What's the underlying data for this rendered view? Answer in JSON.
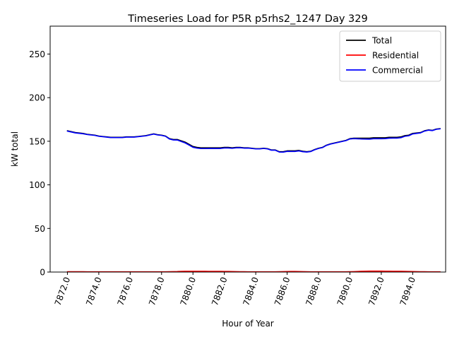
{
  "chart_data": {
    "type": "line",
    "title": "Timeseries Load for P5R p5rhs2_1247  Day 329",
    "xlabel": "Hour of Year",
    "ylabel": "kW total",
    "xlim": [
      7870.9,
      7896.1
    ],
    "ylim": [
      0,
      282
    ],
    "xticks": [
      7872,
      7874,
      7876,
      7878,
      7880,
      7882,
      7884,
      7886,
      7888,
      7890,
      7892,
      7894
    ],
    "xtick_labels": [
      "7872.0",
      "7874.0",
      "7876.0",
      "7878.0",
      "7880.0",
      "7882.0",
      "7884.0",
      "7886.0",
      "7888.0",
      "7890.0",
      "7892.0",
      "7894.0"
    ],
    "yticks": [
      0,
      50,
      100,
      150,
      200,
      250
    ],
    "ytick_labels": [
      "0",
      "50",
      "100",
      "150",
      "200",
      "250"
    ],
    "grid": false,
    "legend_position": "top-right",
    "x": [
      7872.0,
      7872.25,
      7872.5,
      7872.75,
      7873.0,
      7873.25,
      7873.5,
      7873.75,
      7874.0,
      7874.25,
      7874.5,
      7874.75,
      7875.0,
      7875.25,
      7875.5,
      7875.75,
      7876.0,
      7876.25,
      7876.5,
      7876.75,
      7877.0,
      7877.25,
      7877.5,
      7877.75,
      7878.0,
      7878.25,
      7878.5,
      7878.75,
      7879.0,
      7879.25,
      7879.5,
      7879.75,
      7880.0,
      7880.25,
      7880.5,
      7880.75,
      7881.0,
      7881.25,
      7881.5,
      7881.75,
      7882.0,
      7882.25,
      7882.5,
      7882.75,
      7883.0,
      7883.25,
      7883.5,
      7883.75,
      7884.0,
      7884.25,
      7884.5,
      7884.75,
      7885.0,
      7885.25,
      7885.5,
      7885.75,
      7886.0,
      7886.25,
      7886.5,
      7886.75,
      7887.0,
      7887.25,
      7887.5,
      7887.75,
      7888.0,
      7888.25,
      7888.5,
      7888.75,
      7889.0,
      7889.25,
      7889.5,
      7889.75,
      7890.0,
      7890.25,
      7890.5,
      7890.75,
      7891.0,
      7891.25,
      7891.5,
      7891.75,
      7892.0,
      7892.25,
      7892.5,
      7892.75,
      7893.0,
      7893.25,
      7893.5,
      7893.75,
      7894.0,
      7894.25,
      7894.5,
      7894.75,
      7895.0,
      7895.25,
      7895.5,
      7895.75
    ],
    "series": [
      {
        "name": "Total",
        "color": "#000000",
        "values": [
          162.0,
          161.0,
          160.0,
          159.5,
          159.0,
          158.0,
          157.5,
          157.0,
          156.0,
          155.5,
          155.0,
          154.5,
          154.5,
          154.5,
          154.5,
          155.0,
          155.0,
          155.0,
          155.5,
          156.0,
          156.5,
          157.5,
          158.5,
          157.5,
          157.0,
          156.0,
          153.0,
          152.0,
          152.0,
          150.5,
          149.0,
          146.5,
          144.0,
          143.0,
          142.5,
          142.5,
          142.5,
          142.5,
          142.5,
          142.5,
          143.0,
          143.0,
          142.5,
          143.0,
          143.0,
          142.5,
          142.5,
          142.0,
          141.5,
          141.5,
          142.0,
          141.5,
          140.0,
          140.0,
          138.0,
          138.0,
          139.0,
          139.0,
          139.0,
          139.5,
          138.5,
          138.0,
          138.5,
          140.5,
          142.0,
          143.0,
          145.5,
          147.0,
          148.0,
          149.0,
          150.0,
          151.0,
          153.0,
          153.5,
          153.5,
          153.5,
          153.5,
          153.5,
          154.0,
          154.0,
          154.0,
          154.0,
          154.5,
          154.5,
          154.5,
          155.0,
          156.5,
          157.0,
          159.0,
          159.5,
          160.0,
          162.0,
          163.0,
          162.5,
          164.0,
          164.5
        ]
      },
      {
        "name": "Residential",
        "color": "#ff0000",
        "values": [
          0.4,
          0.4,
          0.4,
          0.4,
          0.4,
          0.3,
          0.3,
          0.3,
          0.3,
          0.3,
          0.3,
          0.3,
          0.3,
          0.3,
          0.3,
          0.3,
          0.3,
          0.3,
          0.3,
          0.3,
          0.3,
          0.3,
          0.3,
          0.3,
          0.3,
          0.3,
          0.4,
          0.5,
          0.6,
          0.8,
          0.9,
          0.9,
          0.9,
          0.9,
          0.9,
          0.9,
          0.8,
          0.8,
          0.8,
          0.8,
          0.7,
          0.7,
          0.6,
          0.5,
          0.4,
          0.4,
          0.3,
          0.3,
          0.3,
          0.3,
          0.3,
          0.3,
          0.3,
          0.3,
          0.4,
          0.5,
          0.6,
          0.7,
          0.7,
          0.6,
          0.5,
          0.4,
          0.3,
          0.3,
          0.3,
          0.3,
          0.3,
          0.3,
          0.3,
          0.3,
          0.3,
          0.3,
          0.4,
          0.5,
          0.7,
          0.9,
          1.0,
          1.1,
          1.1,
          1.1,
          1.1,
          1.0,
          1.0,
          0.9,
          0.9,
          0.9,
          0.8,
          0.7,
          0.6,
          0.5,
          0.4,
          0.4,
          0.3,
          0.3,
          0.3,
          0.3
        ]
      },
      {
        "name": "Commercial",
        "color": "#0000ff",
        "values": [
          161.6,
          160.6,
          159.6,
          159.1,
          158.6,
          157.7,
          157.2,
          156.7,
          155.7,
          155.2,
          154.7,
          154.2,
          154.2,
          154.2,
          154.2,
          154.7,
          154.7,
          154.7,
          155.2,
          155.7,
          156.2,
          157.2,
          158.2,
          157.2,
          156.7,
          155.7,
          152.6,
          151.5,
          151.4,
          149.7,
          148.1,
          145.6,
          143.1,
          142.1,
          141.6,
          141.6,
          141.7,
          141.7,
          141.7,
          141.7,
          142.3,
          142.3,
          141.9,
          142.5,
          142.6,
          142.1,
          142.2,
          141.7,
          141.2,
          141.2,
          141.7,
          141.2,
          139.7,
          139.7,
          137.6,
          137.5,
          138.4,
          138.3,
          138.3,
          138.9,
          138.0,
          137.6,
          138.2,
          140.2,
          141.7,
          142.7,
          145.2,
          146.7,
          147.7,
          148.7,
          149.7,
          150.7,
          152.6,
          153.0,
          152.8,
          152.6,
          152.5,
          152.4,
          152.9,
          152.9,
          152.9,
          153.0,
          153.5,
          153.6,
          153.6,
          154.1,
          155.7,
          156.3,
          158.4,
          159.0,
          159.6,
          161.6,
          162.7,
          162.2,
          163.7,
          164.2
        ]
      }
    ]
  }
}
